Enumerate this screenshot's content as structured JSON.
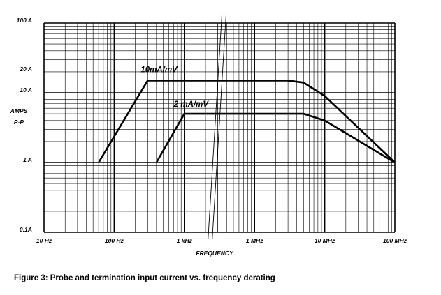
{
  "caption": "Figure 3: Probe and termination input current vs. frequency derating",
  "chart_data": {
    "type": "line",
    "title": "",
    "xlabel": "FREQUENCY",
    "ylabel": "AMPS P-P",
    "x_scale": "log",
    "y_scale": "log",
    "xlim": [
      10,
      100000000
    ],
    "ylim": [
      0.1,
      100
    ],
    "x_ticks": [
      {
        "value": 10,
        "label": "10 Hz"
      },
      {
        "value": 100,
        "label": "100 Hz"
      },
      {
        "value": 1000,
        "label": "1 kHz"
      },
      {
        "value": 1000000,
        "label": "1 MHz"
      },
      {
        "value": 10000000,
        "label": "10 MHz"
      },
      {
        "value": 100000000,
        "label": "100 MHz"
      }
    ],
    "y_ticks": [
      {
        "value": 100,
        "label": "100 A"
      },
      {
        "value": 20,
        "label": "20 A"
      },
      {
        "value": 10,
        "label": "10 A"
      },
      {
        "value": 1,
        "label": "1 A"
      },
      {
        "value": 0.1,
        "label": "0.1A"
      }
    ],
    "axis_break": {
      "from_hz": 3000,
      "to_hz": 300000
    },
    "grid": true,
    "series": [
      {
        "name": "10mA/mV",
        "x": [
          60,
          300,
          3000,
          300000,
          3000000,
          5000000,
          10000000,
          100000000
        ],
        "y": [
          1,
          15,
          15,
          15,
          15,
          14,
          9,
          1
        ]
      },
      {
        "name": "2 mA/mV",
        "x": [
          400,
          1000,
          3000,
          300000,
          5000000,
          10000000,
          100000000
        ],
        "y": [
          1,
          5,
          5,
          5,
          5,
          4,
          1
        ]
      }
    ]
  }
}
